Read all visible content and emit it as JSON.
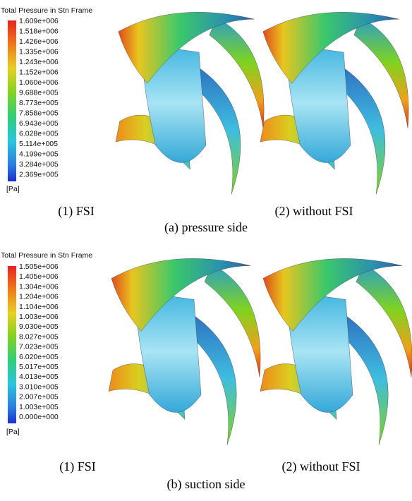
{
  "panels": [
    {
      "legend": {
        "title": "Total Pressure in Stn Frame",
        "labels": [
          "1.609e+006",
          "1.518e+006",
          "1.426e+006",
          "1.335e+006",
          "1.243e+006",
          "1.152e+006",
          "1.060e+006",
          "9.688e+005",
          "8.773e+005",
          "7.858e+005",
          "6.943e+005",
          "6.028e+005",
          "5.114e+005",
          "4.199e+005",
          "3.284e+005",
          "2.369e+005"
        ],
        "unit": "[Pa]"
      },
      "images": [
        {
          "caption": "(1) FSI"
        },
        {
          "caption": "(2) without FSI"
        }
      ],
      "caption": "(a) pressure side"
    },
    {
      "legend": {
        "title": "Total Pressure in Stn Frame",
        "labels": [
          "1.505e+006",
          "1.405e+006",
          "1.304e+006",
          "1.204e+006",
          "1.104e+006",
          "1.003e+006",
          "9.030e+005",
          "8.027e+005",
          "7.023e+005",
          "6.020e+005",
          "5.017e+005",
          "4.013e+005",
          "3.010e+005",
          "2.007e+005",
          "1.003e+005",
          "0.000e+000"
        ],
        "unit": "[Pa]"
      },
      "images": [
        {
          "caption": "(1) FSI"
        },
        {
          "caption": "(2) without FSI"
        }
      ],
      "caption": "(b) suction side"
    }
  ]
}
